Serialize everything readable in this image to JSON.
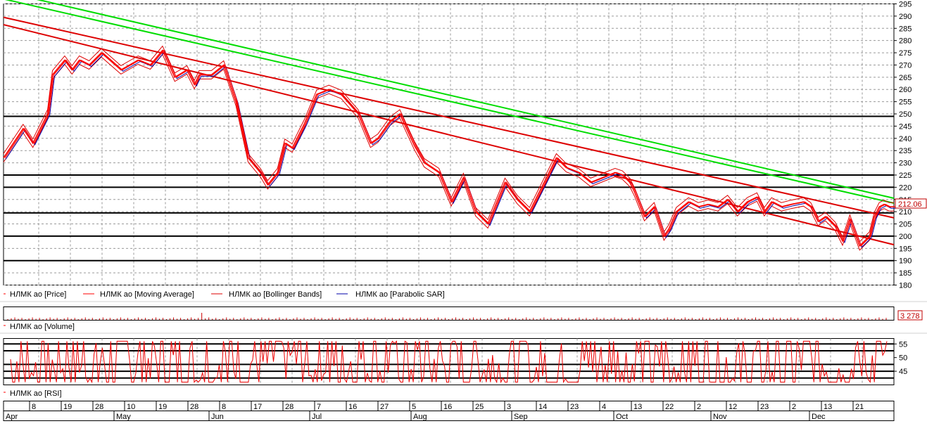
{
  "chart_data": {
    "type": "line",
    "price_panel": {
      "ylim": [
        180,
        295
      ],
      "yticks": [
        180,
        185,
        190,
        195,
        200,
        205,
        210,
        215,
        220,
        225,
        230,
        235,
        240,
        245,
        250,
        255,
        260,
        265,
        270,
        275,
        280,
        285,
        290,
        295
      ],
      "grid": true,
      "last_value": "212.06",
      "horizontal_levels": [
        249,
        225,
        220,
        209.5,
        200,
        190
      ],
      "trend_lines": [
        {
          "color": "#00dd00",
          "points": [
            [
              0,
              300
            ],
            [
              364,
              215.5
            ]
          ]
        },
        {
          "color": "#00dd00",
          "points": [
            [
              0,
              297
            ],
            [
              364,
              213.5
            ]
          ]
        },
        {
          "color": "#dd0000",
          "points": [
            [
              0,
              289.5
            ],
            [
              364,
              207.5
            ]
          ]
        },
        {
          "color": "#dd0000",
          "points": [
            [
              0,
              286.5
            ],
            [
              364,
              196.5
            ]
          ]
        }
      ],
      "series": [
        {
          "name": "НЛМК ао [Price]",
          "color": "#ff0000",
          "x": [
            0,
            8,
            12,
            18,
            20,
            25,
            28,
            31,
            35,
            40,
            48,
            55,
            60,
            65,
            70,
            75,
            78,
            80,
            85,
            90,
            95,
            100,
            105,
            108,
            112,
            115,
            118,
            120,
            123,
            128,
            133,
            138,
            145,
            150,
            153,
            158,
            162,
            168,
            172,
            178,
            183,
            188,
            193,
            198,
            205,
            210,
            215,
            220,
            226,
            230,
            235,
            240,
            245,
            250,
            253,
            256,
            258,
            262,
            266,
            270,
            272,
            275,
            280,
            284,
            288,
            292,
            296,
            300,
            304,
            308,
            311,
            314,
            318,
            322,
            327,
            330,
            333,
            336,
            340,
            343,
            346,
            350,
            354,
            356,
            358,
            360,
            362,
            364
          ],
          "values": [
            232,
            244,
            238,
            250,
            266,
            272,
            268,
            272,
            270,
            275,
            268,
            272,
            270,
            276,
            265,
            268,
            262,
            266,
            266,
            270,
            255,
            232,
            226,
            221,
            226,
            238,
            236,
            240,
            246,
            258,
            260,
            258,
            250,
            238,
            240,
            247,
            250,
            237,
            230,
            226,
            214,
            224,
            210,
            205,
            222,
            215,
            210,
            220,
            232,
            228,
            226,
            222,
            224,
            226,
            225,
            222,
            218,
            208,
            212,
            200,
            203,
            210,
            214,
            212,
            213,
            212,
            215,
            210,
            214,
            216,
            210,
            214,
            212,
            213,
            214,
            212,
            206,
            208,
            204,
            198,
            207,
            196,
            200,
            208,
            212,
            213,
            212,
            212
          ]
        },
        {
          "name": "НЛМК ао [Moving Average]",
          "color": "#ff0000"
        },
        {
          "name": "НЛМК ао [Bollinger Bands]",
          "color": "#dd0000"
        },
        {
          "name": "НЛМК ао [Parabolic SAR]",
          "color": "#0000aa"
        }
      ]
    },
    "volume_panel": {
      "series_name": "НЛМК ао [Volume]",
      "last_value": "3 278"
    },
    "rsi_panel": {
      "series_name": "НЛМК ао [RSI]",
      "ylim": [
        40,
        57
      ],
      "yticks": [
        45,
        50,
        55
      ],
      "levels": [
        42.5,
        45,
        47.5,
        52.5,
        55
      ]
    },
    "x_axis": {
      "day_ticks": [
        "8",
        "19",
        "28",
        "10",
        "19",
        "28",
        "8",
        "17",
        "28",
        "7",
        "16",
        "27",
        "5",
        "16",
        "25",
        "3",
        "14",
        "23",
        "4",
        "13",
        "22",
        "2",
        "12",
        "23",
        "2",
        "13",
        "21"
      ],
      "months": [
        "Apr",
        "May",
        "Jun",
        "Jul",
        "Aug",
        "Sep",
        "Oct",
        "Nov",
        "Dec"
      ]
    }
  }
}
